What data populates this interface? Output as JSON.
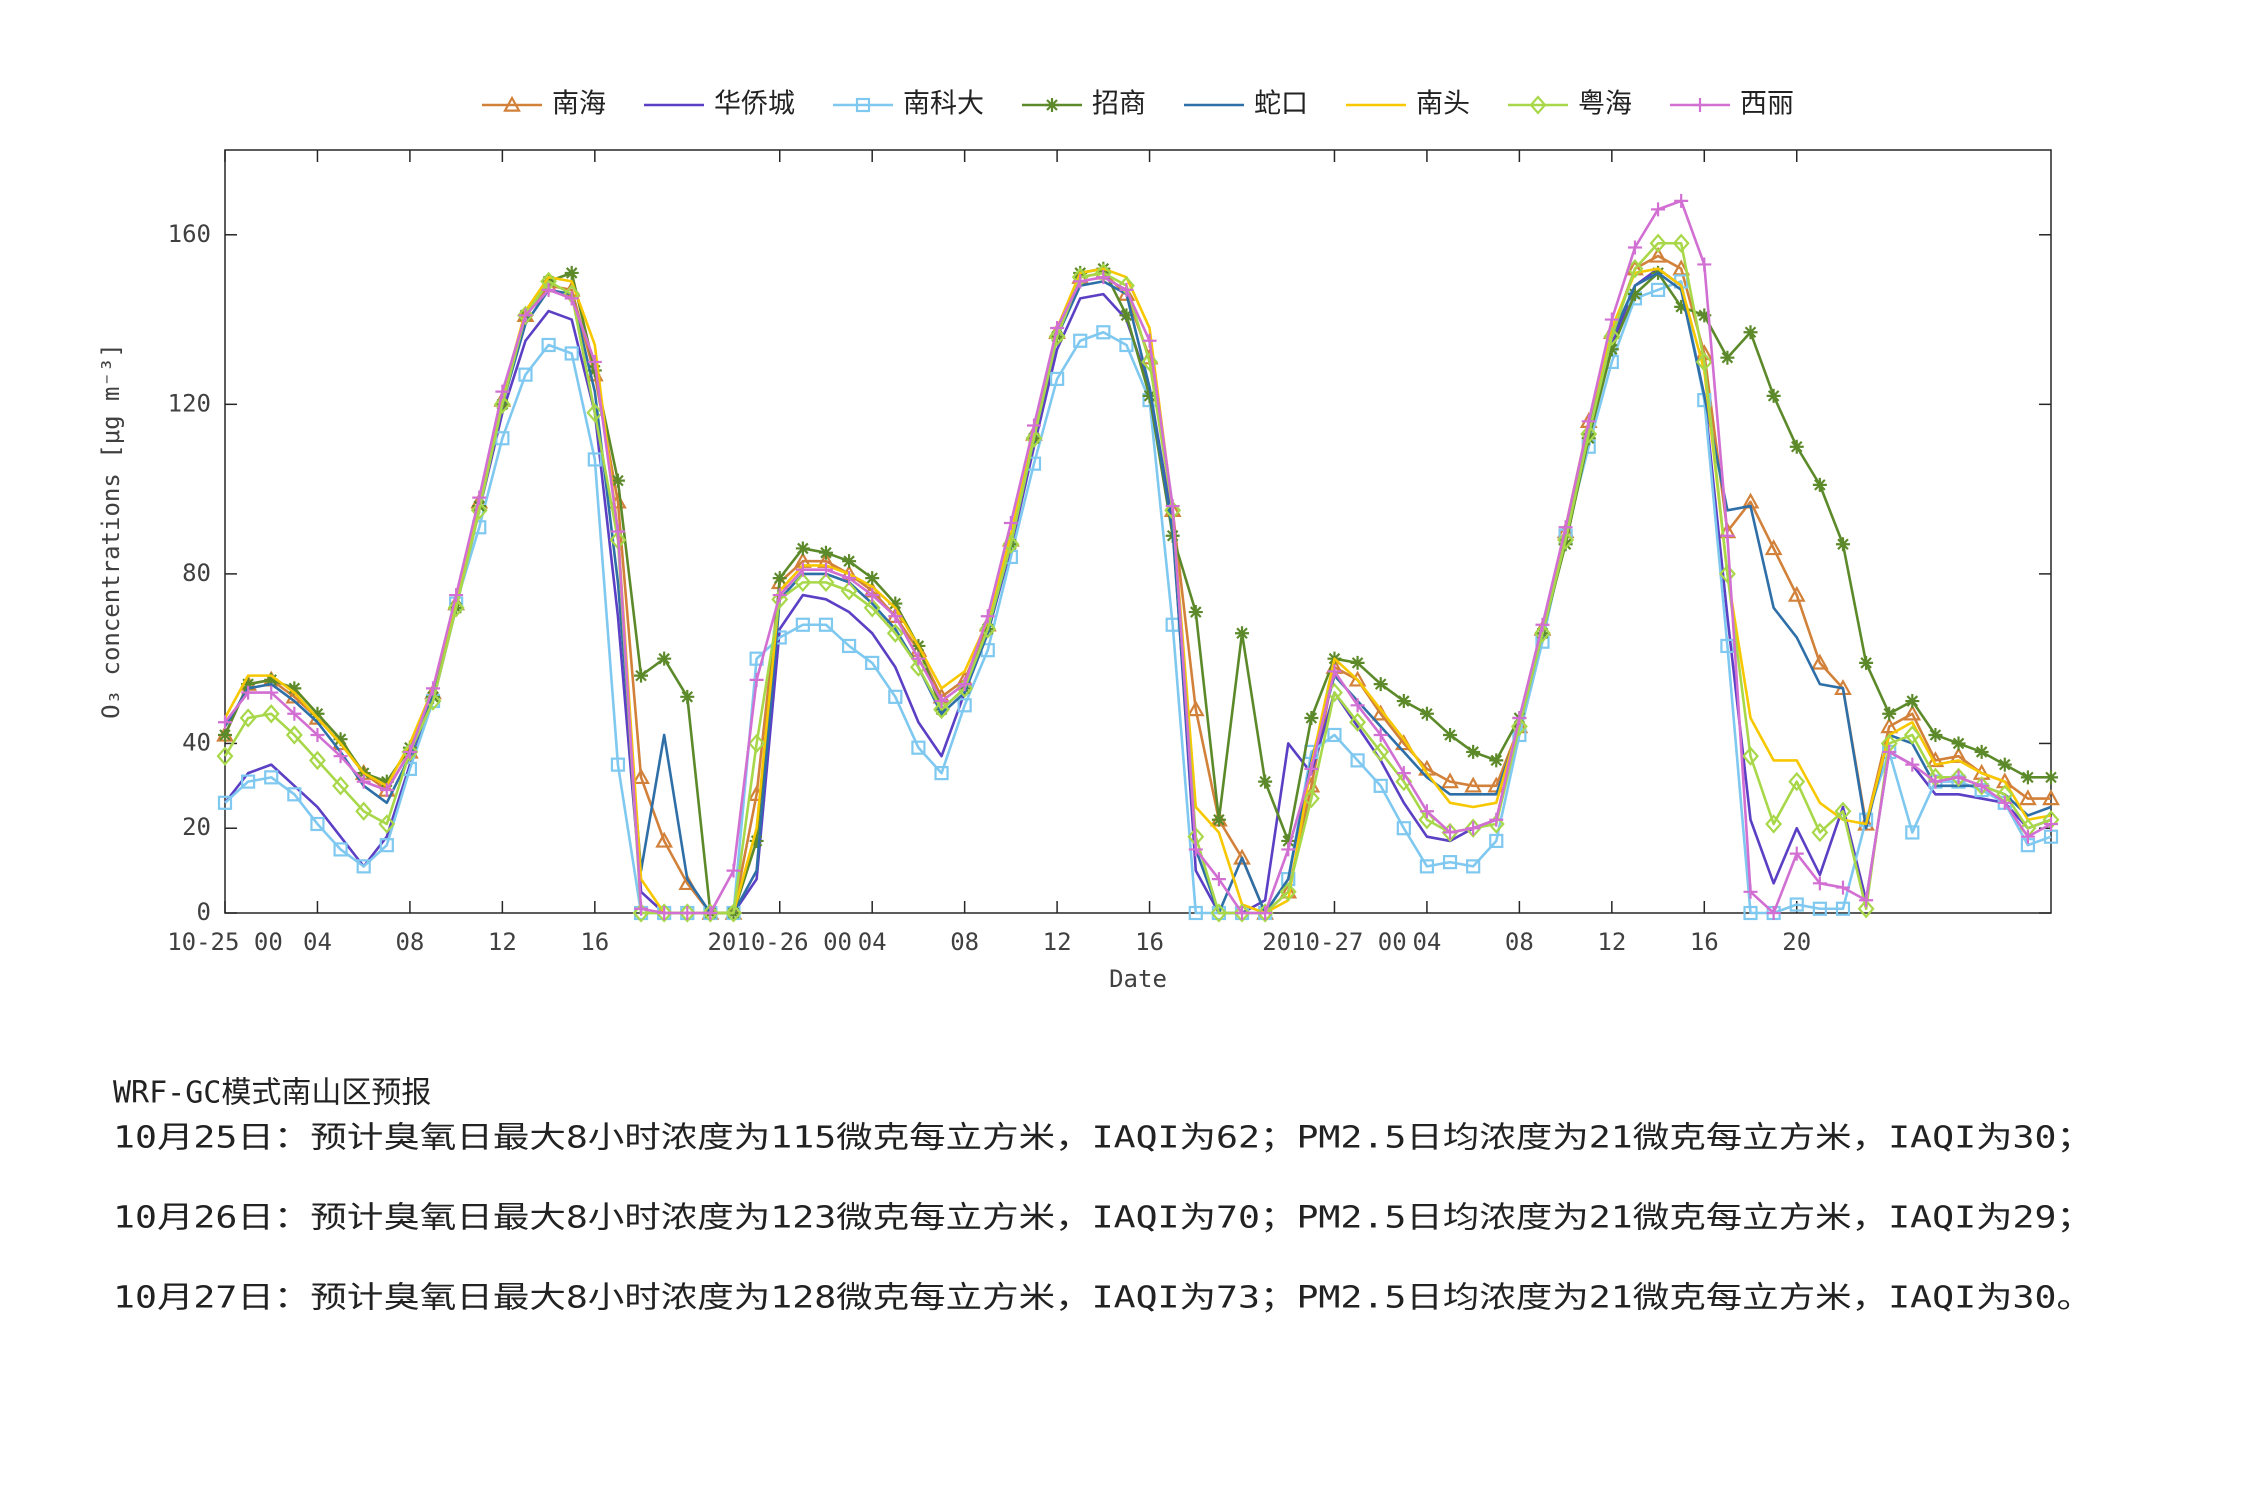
{
  "chart_data": {
    "type": "line",
    "xlabel": "Date",
    "ylabel": "O₃ concentrations [μg m⁻³]",
    "x": [
      0,
      1,
      2,
      3,
      4,
      5,
      6,
      7,
      8,
      9,
      10,
      11,
      12,
      13,
      14,
      15,
      16,
      17,
      18,
      19,
      20,
      21,
      22,
      23,
      24,
      25,
      26,
      27,
      28,
      29,
      30,
      31,
      32,
      33,
      34,
      35,
      36,
      37,
      38,
      39,
      40,
      41,
      42,
      43,
      44,
      45,
      46,
      47,
      48,
      49,
      50,
      51,
      52,
      53,
      54,
      55,
      56,
      57,
      58,
      59,
      60,
      61,
      62,
      63,
      64,
      65,
      66,
      67,
      68,
      69,
      70,
      71,
      72,
      73,
      74,
      75,
      76,
      77,
      78,
      79
    ],
    "xlim": [
      0,
      79
    ],
    "xticks": [
      {
        "value": 0,
        "label": "10-25 00"
      },
      {
        "value": 4,
        "label": "04"
      },
      {
        "value": 8,
        "label": "08"
      },
      12,
      16,
      {
        "value": 24,
        "label": "2010-26 00"
      },
      {
        "value": 28,
        "label": "04"
      },
      {
        "value": 32,
        "label": "08"
      },
      {
        "value": 36,
        "label": "12"
      },
      {
        "value": 40,
        "label": "16"
      },
      {
        "value": 48,
        "label": "2010-27 00"
      },
      {
        "value": 52,
        "label": "04"
      },
      {
        "value": 56,
        "label": "08"
      },
      {
        "value": 60,
        "label": "12"
      },
      {
        "value": 64,
        "label": "16"
      },
      {
        "value": 68,
        "label": "20"
      }
    ],
    "ylim": [
      0,
      180
    ],
    "yticks": [
      0,
      20,
      40,
      80,
      120,
      160
    ],
    "grid": false,
    "legend": "top",
    "series": [
      {
        "name": "南海",
        "color": "#d2813a",
        "marker": "triangle",
        "values": [
          42,
          54,
          55,
          51,
          46,
          40,
          33,
          29,
          38,
          52,
          73,
          97,
          121,
          141,
          148,
          147,
          127,
          97,
          32,
          17,
          7,
          0,
          0,
          28,
          78,
          83,
          83,
          80,
          76,
          70,
          62,
          51,
          55,
          68,
          88,
          113,
          137,
          150,
          151,
          146,
          131,
          95,
          48,
          22,
          13,
          0,
          5,
          30,
          58,
          55,
          47,
          40,
          34,
          31,
          30,
          30,
          44,
          67,
          90,
          116,
          137,
          152,
          155,
          152,
          132,
          90,
          97,
          86,
          75,
          59,
          53,
          21,
          44,
          47,
          36,
          37,
          33,
          31,
          27,
          27
        ]
      },
      {
        "name": "华侨城",
        "color": "#5b3fc4",
        "marker": "none",
        "values": [
          26,
          33,
          35,
          30,
          25,
          18,
          11,
          18,
          35,
          50,
          72,
          95,
          118,
          135,
          142,
          140,
          118,
          70,
          5,
          0,
          0,
          0,
          0,
          8,
          67,
          75,
          74,
          71,
          66,
          58,
          45,
          37,
          52,
          66,
          86,
          110,
          133,
          145,
          146,
          140,
          124,
          92,
          10,
          0,
          0,
          3,
          40,
          33,
          52,
          44,
          36,
          26,
          18,
          17,
          20,
          22,
          44,
          66,
          89,
          113,
          134,
          148,
          152,
          148,
          122,
          70,
          22,
          7,
          20,
          9,
          25,
          3,
          38,
          35,
          28,
          28,
          27,
          26,
          20,
          22
        ]
      },
      {
        "name": "南科大",
        "color": "#7fc8f0",
        "marker": "square",
        "values": [
          26,
          31,
          32,
          28,
          21,
          15,
          11,
          16,
          34,
          50,
          73,
          91,
          112,
          127,
          134,
          132,
          107,
          35,
          0,
          0,
          0,
          0,
          0,
          60,
          65,
          68,
          68,
          63,
          59,
          51,
          39,
          33,
          49,
          62,
          84,
          106,
          126,
          135,
          137,
          134,
          121,
          68,
          0,
          0,
          0,
          0,
          8,
          38,
          42,
          36,
          30,
          20,
          11,
          12,
          11,
          17,
          42,
          64,
          89,
          110,
          130,
          145,
          147,
          149,
          121,
          63,
          0,
          0,
          2,
          1,
          1,
          22,
          38,
          19,
          31,
          31,
          29,
          26,
          16,
          18
        ]
      },
      {
        "name": "招商",
        "color": "#5c8a2a",
        "marker": "star",
        "values": [
          42,
          54,
          55,
          53,
          47,
          41,
          33,
          31,
          39,
          51,
          72,
          96,
          120,
          141,
          149,
          151,
          128,
          102,
          56,
          60,
          51,
          0,
          0,
          17,
          79,
          86,
          85,
          83,
          79,
          73,
          63,
          48,
          53,
          67,
          87,
          112,
          136,
          151,
          152,
          141,
          122,
          89,
          71,
          22,
          66,
          31,
          17,
          46,
          60,
          59,
          54,
          50,
          47,
          42,
          38,
          36,
          46,
          66,
          87,
          112,
          133,
          146,
          151,
          143,
          141,
          131,
          137,
          122,
          110,
          101,
          87,
          59,
          47,
          50,
          42,
          40,
          38,
          35,
          32,
          32
        ]
      },
      {
        "name": "蛇口",
        "color": "#2f6fa8",
        "marker": "none",
        "values": [
          44,
          53,
          54,
          50,
          45,
          38,
          30,
          26,
          37,
          51,
          73,
          96,
          120,
          139,
          147,
          146,
          123,
          78,
          10,
          42,
          8,
          0,
          0,
          10,
          74,
          80,
          80,
          78,
          73,
          67,
          58,
          47,
          52,
          66,
          87,
          112,
          136,
          148,
          149,
          146,
          124,
          90,
          15,
          0,
          13,
          0,
          8,
          36,
          56,
          50,
          44,
          38,
          32,
          28,
          28,
          28,
          44,
          66,
          89,
          114,
          136,
          148,
          151,
          147,
          122,
          95,
          96,
          72,
          65,
          54,
          53,
          20,
          42,
          40,
          30,
          30,
          30,
          28,
          23,
          25
        ]
      },
      {
        "name": "南头",
        "color": "#f7c800",
        "marker": "none",
        "values": [
          46,
          56,
          56,
          52,
          46,
          40,
          33,
          30,
          40,
          53,
          74,
          97,
          122,
          142,
          150,
          149,
          134,
          90,
          8,
          0,
          0,
          0,
          0,
          20,
          76,
          82,
          82,
          80,
          77,
          72,
          63,
          53,
          57,
          69,
          89,
          114,
          138,
          151,
          152,
          150,
          138,
          95,
          25,
          19,
          2,
          0,
          3,
          35,
          60,
          55,
          48,
          41,
          33,
          26,
          25,
          26,
          45,
          67,
          91,
          116,
          138,
          151,
          152,
          148,
          128,
          80,
          46,
          36,
          36,
          26,
          22,
          21,
          42,
          45,
          35,
          36,
          33,
          31,
          22,
          23
        ]
      },
      {
        "name": "粤海",
        "color": "#a8d84a",
        "marker": "diamond",
        "values": [
          37,
          46,
          47,
          42,
          36,
          30,
          24,
          21,
          38,
          50,
          72,
          95,
          120,
          141,
          149,
          146,
          118,
          88,
          0,
          0,
          0,
          0,
          0,
          40,
          74,
          78,
          78,
          76,
          72,
          66,
          58,
          48,
          53,
          67,
          87,
          112,
          136,
          150,
          151,
          148,
          130,
          95,
          18,
          0,
          0,
          0,
          5,
          27,
          52,
          45,
          38,
          31,
          22,
          19,
          20,
          21,
          44,
          66,
          88,
          113,
          136,
          152,
          158,
          158,
          130,
          80,
          37,
          21,
          31,
          19,
          24,
          1,
          40,
          42,
          32,
          32,
          30,
          28,
          20,
          22
        ]
      },
      {
        "name": "西丽",
        "color": "#d26fd2",
        "marker": "plus",
        "values": [
          45,
          52,
          52,
          47,
          42,
          37,
          31,
          29,
          38,
          53,
          75,
          98,
          123,
          141,
          147,
          145,
          130,
          90,
          1,
          0,
          0,
          0,
          10,
          55,
          75,
          81,
          81,
          79,
          75,
          70,
          60,
          50,
          54,
          70,
          92,
          115,
          138,
          149,
          150,
          147,
          135,
          96,
          15,
          8,
          0,
          0,
          15,
          34,
          57,
          49,
          42,
          33,
          24,
          19,
          20,
          22,
          46,
          68,
          91,
          116,
          140,
          157,
          166,
          168,
          153,
          89,
          5,
          0,
          14,
          7,
          6,
          3,
          38,
          35,
          31,
          32,
          30,
          26,
          18,
          21
        ]
      }
    ]
  },
  "forecast": {
    "title": "WRF-GC模式南山区预报",
    "lines": [
      "10月25日：预计臭氧日最大8小时浓度为115微克每立方米，IAQI为62；PM2.5日均浓度为21微克每立方米，IAQI为30；",
      "10月26日：预计臭氧日最大8小时浓度为123微克每立方米，IAQI为70；PM2.5日均浓度为21微克每立方米，IAQI为29；",
      "10月27日：预计臭氧日最大8小时浓度为128微克每立方米，IAQI为73；PM2.5日均浓度为21微克每立方米，IAQI为30。"
    ]
  }
}
